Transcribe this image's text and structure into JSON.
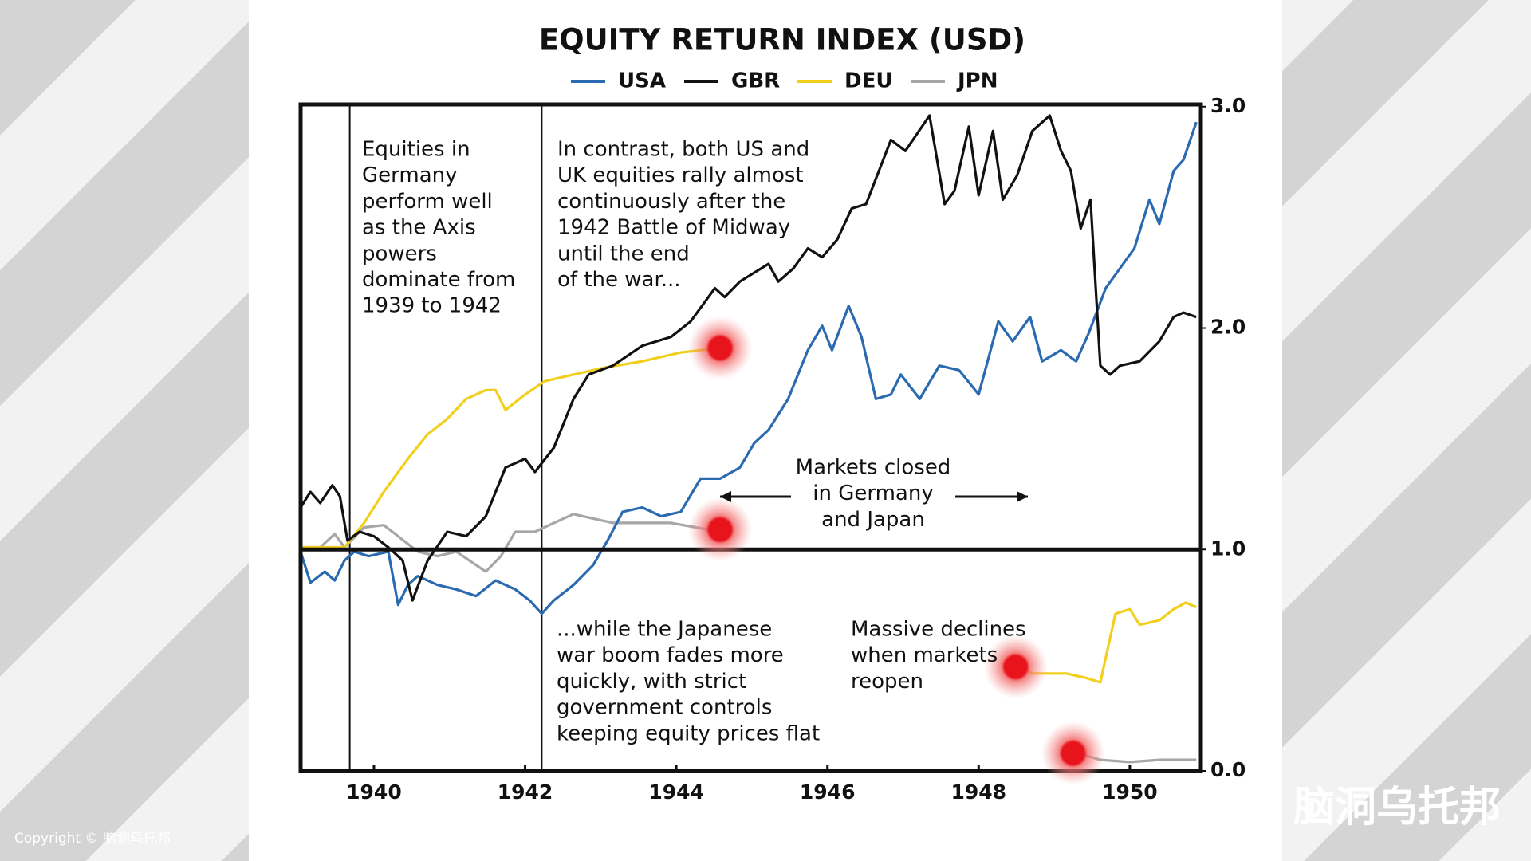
{
  "chart_data": {
    "type": "line",
    "title": "EQUITY RETURN INDEX (USD)",
    "xlim": [
      1939.03,
      1950.94
    ],
    "xticks": [
      1940,
      1942,
      1944,
      1946,
      1948,
      1950
    ],
    "ylim": [
      0,
      3.01
    ],
    "yticks": [
      {
        "value": 0,
        "label": "0.0"
      },
      {
        "value": 1,
        "label": "1.0"
      },
      {
        "value": 2,
        "label": "2.0"
      },
      {
        "value": 3,
        "label": "3.0"
      }
    ],
    "y_axis_side": "right",
    "grid": false,
    "legend": "top",
    "reference_line_y": 1,
    "vlines": [
      1939.68,
      1942.22
    ],
    "series": [
      {
        "name": "USA",
        "color": "#2a6ab0",
        "x": [
          1939.03,
          1939.16,
          1939.35,
          1939.48,
          1939.61,
          1939.74,
          1939.93,
          1940.19,
          1940.32,
          1940.45,
          1940.58,
          1940.84,
          1941.09,
          1941.35,
          1941.61,
          1941.87,
          1942.06,
          1942.22,
          1942.38,
          1942.64,
          1942.9,
          1943.09,
          1943.29,
          1943.55,
          1943.8,
          1944.06,
          1944.32,
          1944.58,
          1944.84,
          1945.03,
          1945.22,
          1945.48,
          1945.74,
          1945.93,
          1946.06,
          1946.28,
          1946.45,
          1946.64,
          1946.84,
          1946.97,
          1947.22,
          1947.48,
          1947.74,
          1948.0,
          1948.26,
          1948.45,
          1948.68,
          1948.84,
          1949.09,
          1949.29,
          1949.46,
          1949.68,
          1949.87,
          1950.06,
          1950.26,
          1950.39,
          1950.58,
          1950.71,
          1950.88
        ],
        "values": [
          0.99,
          0.85,
          0.9,
          0.86,
          0.95,
          0.99,
          0.97,
          0.99,
          0.75,
          0.84,
          0.88,
          0.84,
          0.82,
          0.79,
          0.86,
          0.82,
          0.77,
          0.71,
          0.77,
          0.84,
          0.93,
          1.04,
          1.17,
          1.19,
          1.15,
          1.17,
          1.32,
          1.32,
          1.37,
          1.48,
          1.54,
          1.68,
          1.9,
          2.01,
          1.9,
          2.1,
          1.96,
          1.68,
          1.7,
          1.79,
          1.68,
          1.83,
          1.81,
          1.7,
          2.03,
          1.94,
          2.05,
          1.85,
          1.9,
          1.85,
          1.98,
          2.18,
          2.27,
          2.36,
          2.58,
          2.47,
          2.71,
          2.76,
          2.93
        ]
      },
      {
        "name": "GBR",
        "color": "#111111",
        "x": [
          1939.03,
          1939.16,
          1939.29,
          1939.45,
          1939.55,
          1939.65,
          1939.81,
          1940.0,
          1940.19,
          1940.38,
          1940.51,
          1940.71,
          1940.97,
          1941.22,
          1941.48,
          1941.74,
          1942.0,
          1942.13,
          1942.38,
          1942.64,
          1942.84,
          1943.16,
          1943.55,
          1943.93,
          1944.19,
          1944.51,
          1944.64,
          1944.84,
          1945.22,
          1945.35,
          1945.55,
          1945.74,
          1945.93,
          1946.13,
          1946.32,
          1946.51,
          1946.84,
          1947.03,
          1947.35,
          1947.55,
          1947.68,
          1947.87,
          1948.0,
          1948.19,
          1948.32,
          1948.51,
          1948.71,
          1948.94,
          1949.09,
          1949.22,
          1949.35,
          1949.48,
          1949.61,
          1949.74,
          1949.87,
          1950.13,
          1950.39,
          1950.58,
          1950.71,
          1950.88
        ],
        "values": [
          1.19,
          1.26,
          1.21,
          1.29,
          1.24,
          1.04,
          1.08,
          1.06,
          1.01,
          0.95,
          0.77,
          0.95,
          1.08,
          1.06,
          1.15,
          1.37,
          1.41,
          1.35,
          1.46,
          1.68,
          1.79,
          1.83,
          1.92,
          1.96,
          2.03,
          2.18,
          2.14,
          2.21,
          2.29,
          2.21,
          2.27,
          2.36,
          2.32,
          2.4,
          2.54,
          2.56,
          2.85,
          2.8,
          2.96,
          2.56,
          2.62,
          2.91,
          2.6,
          2.89,
          2.58,
          2.69,
          2.89,
          2.96,
          2.8,
          2.71,
          2.45,
          2.58,
          1.83,
          1.79,
          1.83,
          1.85,
          1.94,
          2.05,
          2.07,
          2.05
        ]
      },
      {
        "name": "DEU",
        "color": "#f2cf1d",
        "x": [
          1939.03,
          1939.29,
          1939.61,
          1939.87,
          1940.13,
          1940.45,
          1940.71,
          1940.97,
          1941.22,
          1941.48,
          1941.61,
          1941.74,
          1942.0,
          1942.26,
          1942.64,
          1943.03,
          1943.55,
          1944.06,
          1944.58,
          null,
          1948.45,
          1948.71,
          1948.97,
          1949.16,
          1949.42,
          1949.61,
          1949.81,
          1950.0,
          1950.13,
          1950.39,
          1950.58,
          1950.74,
          1950.88
        ],
        "values": [
          1.01,
          1.01,
          1.01,
          1.12,
          1.26,
          1.41,
          1.52,
          1.59,
          1.68,
          1.72,
          1.72,
          1.63,
          1.7,
          1.76,
          1.79,
          1.82,
          1.85,
          1.89,
          1.91,
          null,
          0.49,
          0.44,
          0.44,
          0.44,
          0.42,
          0.4,
          0.71,
          0.73,
          0.66,
          0.68,
          0.73,
          0.76,
          0.74
        ]
      },
      {
        "name": "JPN",
        "color": "#a6a6a6",
        "x": [
          1939.03,
          1939.29,
          1939.48,
          1939.61,
          1939.87,
          1940.13,
          1940.32,
          1940.58,
          1940.84,
          1941.09,
          1941.35,
          1941.48,
          1941.68,
          1941.87,
          1942.13,
          1942.38,
          1942.64,
          1942.9,
          1943.16,
          1943.55,
          1943.93,
          1944.26,
          1944.58,
          null,
          1949.22,
          1949.61,
          1950.0,
          1950.39,
          1950.88
        ],
        "values": [
          1.01,
          1.01,
          1.07,
          1.01,
          1.1,
          1.11,
          1.06,
          0.99,
          0.97,
          0.99,
          0.93,
          0.9,
          0.97,
          1.08,
          1.08,
          1.12,
          1.16,
          1.14,
          1.12,
          1.12,
          1.12,
          1.1,
          1.08,
          null,
          0.09,
          0.05,
          0.04,
          0.05,
          0.05
        ]
      }
    ],
    "highlight_points": [
      {
        "x": 1944.58,
        "y": 1.91
      },
      {
        "x": 1944.58,
        "y": 1.09
      },
      {
        "x": 1948.49,
        "y": 0.47
      },
      {
        "x": 1949.25,
        "y": 0.08
      }
    ],
    "annotations": [
      {
        "lines": [
          "Equities in",
          "Germany",
          "perform well",
          "as the Axis",
          "powers",
          "dominate from",
          "1939 to 1942"
        ]
      },
      {
        "lines": [
          "In contrast, both US and",
          "UK equities rally almost",
          "continuously after the",
          "1942 Battle of Midway",
          "until the end",
          "of the war..."
        ]
      },
      {
        "lines": [
          "Markets closed",
          "in Germany",
          "and Japan"
        ]
      },
      {
        "lines": [
          "...while the Japanese",
          "war boom fades more",
          "quickly, with strict",
          "government controls",
          "keeping equity prices flat"
        ]
      },
      {
        "lines": [
          "Massive declines",
          "when markets",
          "reopen"
        ]
      }
    ]
  },
  "watermark": "脑洞乌托邦",
  "copyright": "Copyright © 脑洞乌托邦"
}
